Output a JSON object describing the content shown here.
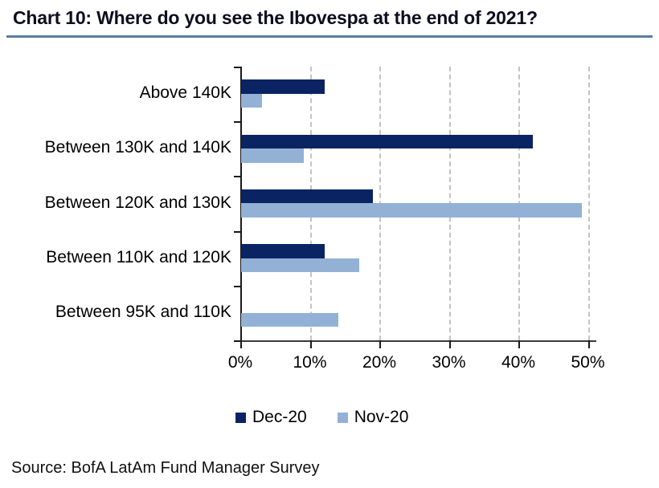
{
  "title": "Chart 10: Where do you see the Ibovespa at the end of 2021?",
  "source": "Source: BofA LatAm Fund Manager Survey",
  "colors": {
    "title_text": "#0d0d1f",
    "title_rule": "#5b7da4",
    "dec_20_bar": "#0a2463",
    "nov_20_bar": "#92b1d5",
    "gridline": "#c4c4c4",
    "axis": "#1a1a1a"
  },
  "chart_data": {
    "type": "bar",
    "orientation": "horizontal",
    "title": "Chart 10: Where do you see the Ibovespa at the end of 2021?",
    "categories": [
      "Above 140K",
      "Between 130K and 140K",
      "Between 120K and 130K",
      "Between 110K and 120K",
      "Between 95K and 110K"
    ],
    "series": [
      {
        "name": "Dec-20",
        "color": "#0a2463",
        "values": [
          12,
          42,
          19,
          12,
          0
        ]
      },
      {
        "name": "Nov-20",
        "color": "#92b1d5",
        "values": [
          3,
          9,
          49,
          17,
          14
        ]
      }
    ],
    "xlabel": "",
    "ylabel": "",
    "xlim": [
      0,
      50
    ],
    "x_tick_values": [
      0,
      10,
      20,
      30,
      40,
      50
    ],
    "x_tick_labels": [
      "0%",
      "10%",
      "20%",
      "30%",
      "40%",
      "50%"
    ],
    "grid": "vertical-dashed",
    "legend_position": "bottom"
  }
}
